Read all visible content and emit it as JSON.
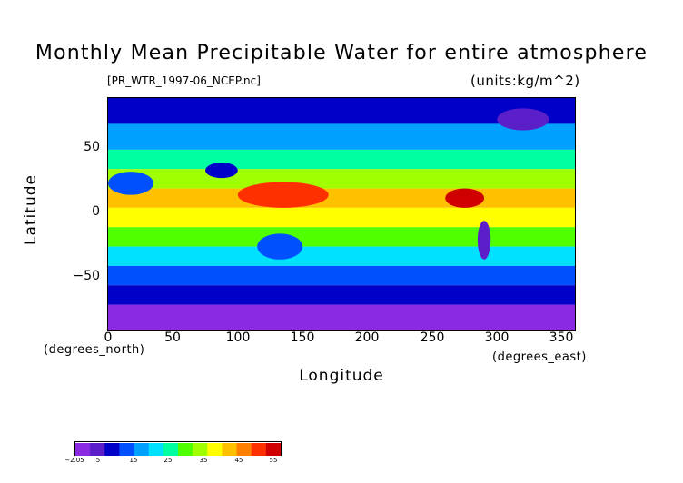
{
  "chart_data": {
    "type": "heatmap",
    "title": "Monthly Mean Precipitable Water for entire atmosphere",
    "source_file": "[PR_WTR_1997-06_NCEP.nc]",
    "units": "(units:kg/m^2)",
    "xlabel": "Longitude",
    "ylabel": "Latitude",
    "x_unit": "(degrees_east)",
    "y_unit": "(degrees_north)",
    "xlim": [
      0,
      360
    ],
    "ylim": [
      -90,
      90
    ],
    "x_ticks": [
      "0",
      "50",
      "100",
      "150",
      "200",
      "250",
      "300",
      "350"
    ],
    "y_ticks": [
      "50",
      "0",
      "−50"
    ],
    "colorbar": {
      "range": [
        -2.05,
        57
      ],
      "tick_labels": [
        "−2.05",
        "5",
        "15",
        "25",
        "35",
        "45",
        "55"
      ]
    },
    "zonal_band_values": [
      {
        "lat_from": 90,
        "lat_to": 70,
        "value": 8
      },
      {
        "lat_from": 70,
        "lat_to": 50,
        "value": 17
      },
      {
        "lat_from": 50,
        "lat_to": 35,
        "value": 24
      },
      {
        "lat_from": 35,
        "lat_to": 20,
        "value": 32
      },
      {
        "lat_from": 20,
        "lat_to": 5,
        "value": 44
      },
      {
        "lat_from": 5,
        "lat_to": -10,
        "value": 40
      },
      {
        "lat_from": -10,
        "lat_to": -25,
        "value": 30
      },
      {
        "lat_from": -25,
        "lat_to": -40,
        "value": 20
      },
      {
        "lat_from": -40,
        "lat_to": -55,
        "value": 13
      },
      {
        "lat_from": -55,
        "lat_to": -70,
        "value": 7
      },
      {
        "lat_from": -70,
        "lat_to": -90,
        "value": 2
      }
    ],
    "regional_features": [
      {
        "name": "west-pacific-warm-pool",
        "lon": [
          100,
          170
        ],
        "lat": [
          5,
          25
        ],
        "value": 52
      },
      {
        "name": "tibetan-plateau-dry",
        "lon": [
          75,
          100
        ],
        "lat": [
          28,
          40
        ],
        "value": 8
      },
      {
        "name": "sahara-dry",
        "lon": [
          0,
          35
        ],
        "lat": [
          15,
          33
        ],
        "value": 14
      },
      {
        "name": "australia-dry",
        "lon": [
          115,
          150
        ],
        "lat": [
          -35,
          -15
        ],
        "value": 12
      },
      {
        "name": "andes-dry",
        "lon": [
          285,
          295
        ],
        "lat": [
          -35,
          -5
        ],
        "value": 5
      },
      {
        "name": "central-america-moist",
        "lon": [
          260,
          290
        ],
        "lat": [
          5,
          20
        ],
        "value": 53
      },
      {
        "name": "greenland-dry",
        "lon": [
          300,
          340
        ],
        "lat": [
          65,
          82
        ],
        "value": 4
      }
    ]
  },
  "palette": [
    "#8a2be2",
    "#5a1fc8",
    "#0000c8",
    "#0050ff",
    "#00a0ff",
    "#00e0ff",
    "#00ffa0",
    "#50ff00",
    "#a0ff00",
    "#ffff00",
    "#ffc000",
    "#ff8000",
    "#ff3000",
    "#d00000"
  ]
}
